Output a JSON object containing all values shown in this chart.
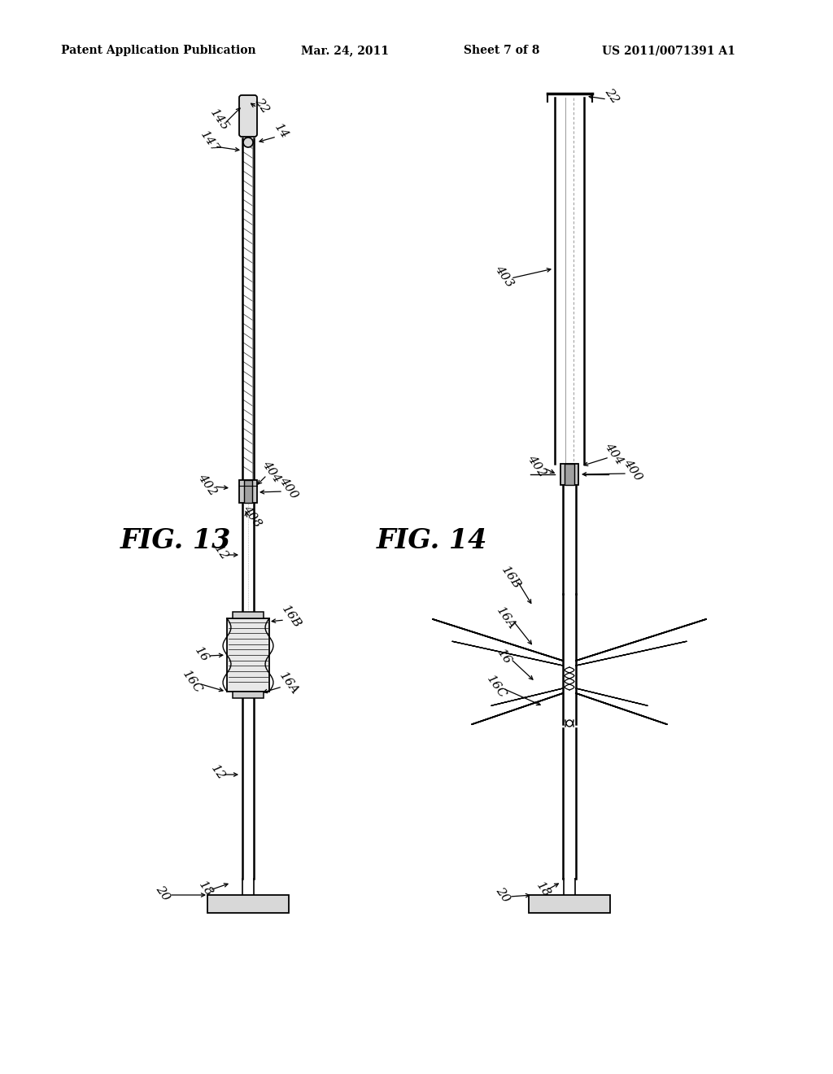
{
  "background_color": "#ffffff",
  "header_text": "Patent Application Publication",
  "header_date": "Mar. 24, 2011",
  "header_sheet": "Sheet 7 of 8",
  "header_patent": "US 2011/0071391 A1",
  "fig13_label": "FIG. 13",
  "fig14_label": "FIG. 14",
  "text_color": "#000000",
  "line_color": "#000000",
  "page_bg": "#f5f5f0"
}
